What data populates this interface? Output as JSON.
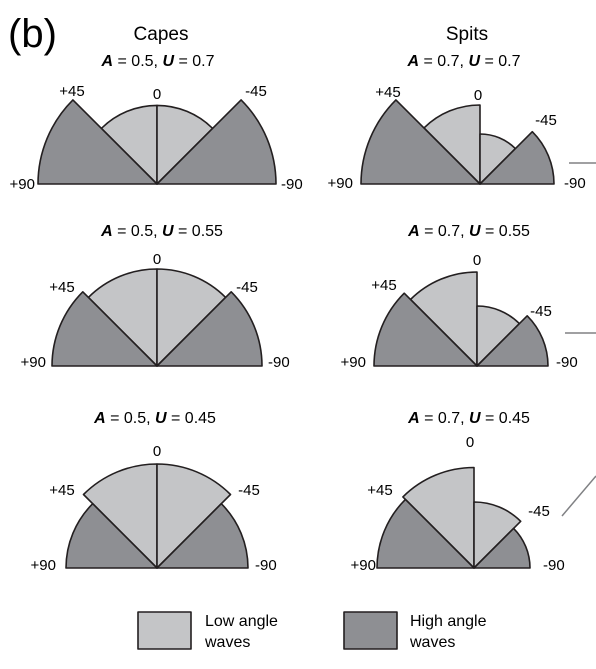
{
  "panel_label": "(b)",
  "columns": [
    {
      "title": "Capes"
    },
    {
      "title": "Spits"
    }
  ],
  "diagrams": [
    {
      "id": "capes-1",
      "A": "0.5",
      "U": "0.7",
      "low_radius": 0.62,
      "high_radius": 1.0,
      "low_left": 0.62,
      "low_right": 0.62
    },
    {
      "id": "spits-1",
      "A": "0.7",
      "U": "0.7",
      "high_left": 1.0,
      "high_right": 0.7,
      "low_left": 0.66,
      "low_right": 0.44
    },
    {
      "id": "capes-2",
      "A": "0.5",
      "U": "0.55",
      "low_left": 0.85,
      "low_right": 0.85,
      "high_left": 0.9,
      "high_right": 0.9
    },
    {
      "id": "spits-2",
      "A": "0.7",
      "U": "0.55",
      "high_left": 0.82,
      "high_right": 0.58,
      "low_left": 0.88,
      "low_right": 0.5
    },
    {
      "id": "capes-3",
      "A": "0.5",
      "U": "0.45",
      "low_left": 1.0,
      "low_right": 1.0,
      "high_left": 0.74,
      "high_right": 0.74
    },
    {
      "id": "spits-3",
      "A": "0.7",
      "U": "0.45",
      "high_left": 0.77,
      "high_right": 0.52,
      "low_left": 0.93,
      "low_right": 0.54
    }
  ],
  "labels": {
    "A": "A",
    "U": "U",
    "eq": " = ",
    "sep": ", ",
    "angle_0": "0",
    "angle_pos45": "+45",
    "angle_neg45": "-45",
    "angle_pos90": "+90",
    "angle_neg90": "-90"
  },
  "legend": {
    "low_line1": "Low angle",
    "low_line2": "waves",
    "high_line1": "High angle",
    "high_line2": "waves"
  },
  "colors": {
    "low": "#c4c5c7",
    "high": "#8e8f93",
    "outline": "#231f20",
    "leader": "#808184"
  }
}
